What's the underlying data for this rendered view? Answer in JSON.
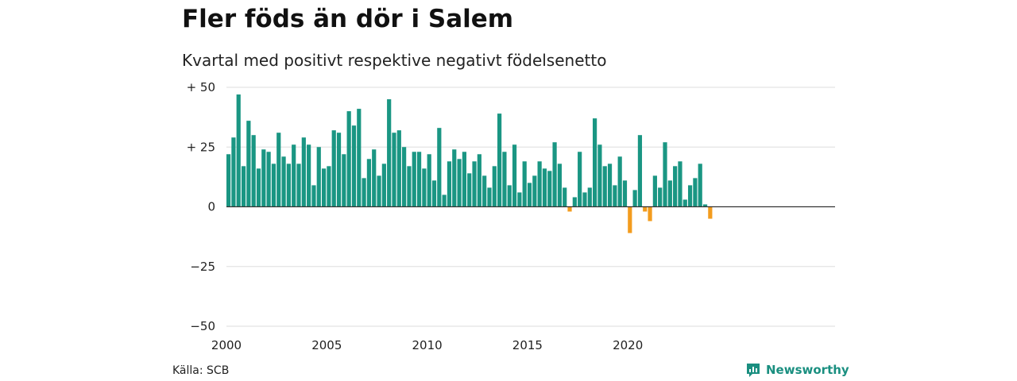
{
  "title": "Fler föds än dör i Salem",
  "subtitle": "Kvartal med positivt respektive negativt födelsenetto",
  "source": "Källa: SCB",
  "brand": "Newsworthy",
  "colors": {
    "positive": "#1a9683",
    "negative": "#f39c1e",
    "grid": "#dddddd",
    "brand": "#1a8f80"
  },
  "chart_data": {
    "type": "bar",
    "x_start": "2000 Q1",
    "x_ticks": [
      "2000",
      "2005",
      "2010",
      "2015",
      "2020"
    ],
    "y_ticks": [
      "+ 50",
      "+ 25",
      "0",
      "−25",
      "−50"
    ],
    "y_tick_values": [
      50,
      25,
      0,
      -25,
      -50
    ],
    "ylim": [
      -50,
      50
    ],
    "grid": true,
    "values": [
      22,
      29,
      47,
      17,
      36,
      30,
      16,
      24,
      23,
      18,
      31,
      21,
      18,
      26,
      18,
      29,
      26,
      9,
      25,
      16,
      17,
      32,
      31,
      22,
      40,
      34,
      41,
      12,
      20,
      24,
      13,
      18,
      45,
      31,
      32,
      25,
      17,
      23,
      23,
      16,
      22,
      11,
      33,
      5,
      19,
      24,
      20,
      23,
      14,
      19,
      22,
      13,
      8,
      17,
      39,
      23,
      9,
      26,
      6,
      19,
      10,
      13,
      19,
      16,
      15,
      27,
      18,
      8,
      -2,
      4,
      23,
      6,
      8,
      37,
      26,
      17,
      18,
      9,
      21,
      11,
      -11,
      7,
      30,
      -2,
      -6,
      13,
      8,
      27,
      11,
      17,
      19,
      3,
      9,
      12,
      18,
      1,
      -5
    ]
  }
}
